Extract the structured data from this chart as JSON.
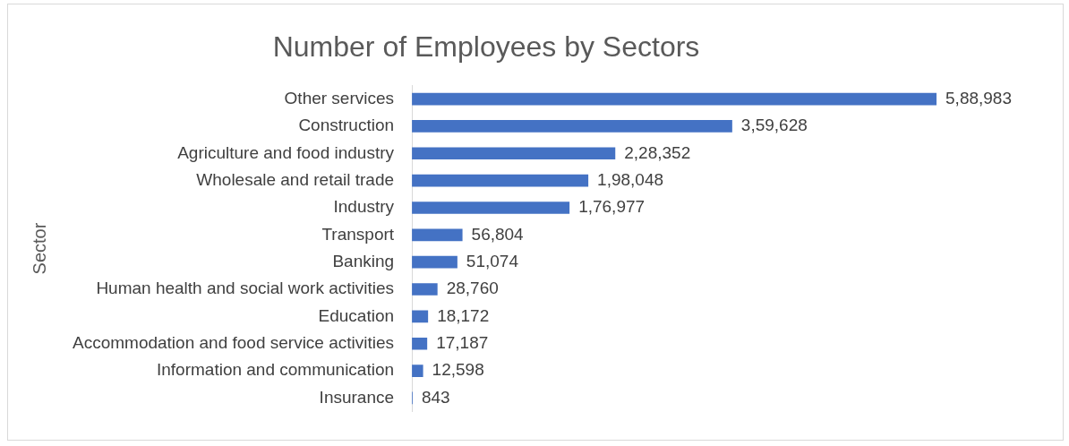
{
  "chart_data": {
    "type": "bar",
    "orientation": "horizontal",
    "title": "Number of Employees by Sectors",
    "ylabel": "Sector",
    "categories": [
      "Other services",
      "Construction",
      "Agriculture and food industry",
      "Wholesale and retail trade",
      "Industry",
      "Transport",
      "Banking",
      "Human health and social work activities",
      "Education",
      "Accommodation and food service activities",
      "Information and communication",
      "Insurance"
    ],
    "values": [
      588983,
      359628,
      228352,
      198048,
      176977,
      56804,
      51074,
      28760,
      18172,
      17187,
      12598,
      843
    ],
    "value_labels": [
      "5,88,983",
      "3,59,628",
      "2,28,352",
      "1,98,048",
      "1,76,977",
      "56,804",
      "51,074",
      "28,760",
      "18,172",
      "17,187",
      "12,598",
      "843"
    ],
    "color": "#4472c4",
    "legend": false,
    "tick_labels": "y"
  }
}
